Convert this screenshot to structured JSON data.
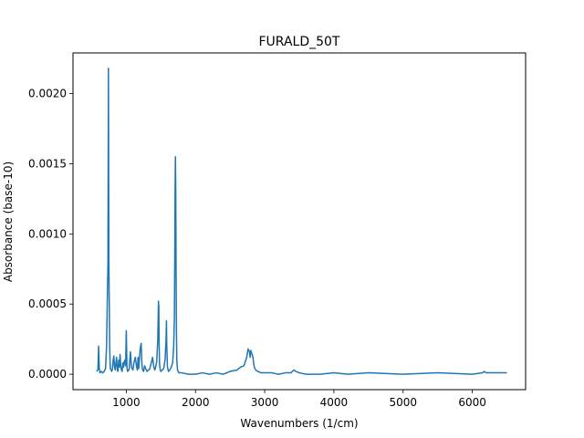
{
  "chart_data": {
    "type": "line",
    "title": "FURALD_50T",
    "xlabel": "Wavenumbers (1/cm)",
    "ylabel": "Absorbance (base-10)",
    "xlim": [
      230,
      6770
    ],
    "ylim": [
      -0.00011,
      0.00229
    ],
    "xticks": [
      1000,
      2000,
      3000,
      4000,
      5000,
      6000
    ],
    "xtick_labels": [
      "1000",
      "2000",
      "3000",
      "4000",
      "5000",
      "6000"
    ],
    "yticks": [
      0.0,
      0.0005,
      0.001,
      0.0015,
      0.002
    ],
    "ytick_labels": [
      "0.0000",
      "0.0005",
      "0.0010",
      "0.0015",
      "0.0020"
    ],
    "grid": false,
    "line_color": "#1f77b4",
    "series": [
      {
        "x": [
          570,
          590,
          600,
          610,
          620,
          640,
          660,
          680,
          700,
          715,
          725,
          735,
          742,
          748,
          752,
          756,
          760,
          765,
          770,
          780,
          790,
          800,
          810,
          820,
          830,
          840,
          850,
          860,
          870,
          880,
          890,
          900,
          910,
          920,
          930,
          940,
          950,
          960,
          970,
          980,
          990,
          1000,
          1010,
          1020,
          1030,
          1040,
          1060,
          1075,
          1085,
          1095,
          1110,
          1130,
          1150,
          1160,
          1170,
          1180,
          1200,
          1215,
          1225,
          1235,
          1250,
          1265,
          1280,
          1300,
          1320,
          1340,
          1360,
          1380,
          1395,
          1410,
          1420,
          1440,
          1455,
          1465,
          1470,
          1475,
          1480,
          1490,
          1500,
          1520,
          1540,
          1560,
          1575,
          1580,
          1585,
          1595,
          1610,
          1630,
          1650,
          1670,
          1685,
          1695,
          1700,
          1705,
          1710,
          1715,
          1720,
          1725,
          1730,
          1740,
          1760,
          1800,
          1900,
          2000,
          2100,
          2200,
          2300,
          2400,
          2500,
          2600,
          2650,
          2700,
          2740,
          2760,
          2780,
          2790,
          2800,
          2810,
          2820,
          2830,
          2840,
          2850,
          2870,
          2900,
          2950,
          3000,
          3100,
          3200,
          3300,
          3380,
          3400,
          3420,
          3450,
          3500,
          3600,
          3800,
          4000,
          4200,
          4500,
          5000,
          5500,
          6000,
          6150,
          6170,
          6200,
          6500
        ],
        "y": [
          2e-05,
          3e-05,
          0.0002,
          4e-05,
          1e-05,
          2e-05,
          1e-05,
          2e-05,
          4e-05,
          0.0002,
          0.0005,
          0.0008,
          0.00218,
          0.00085,
          0.0006,
          0.0004,
          0.0002,
          0.0001,
          4e-05,
          3e-05,
          2e-05,
          4e-05,
          0.0001,
          0.00013,
          5e-05,
          3e-05,
          8e-05,
          0.00012,
          3e-05,
          2e-05,
          0.0001,
          5e-05,
          0.00014,
          6e-05,
          3e-05,
          2e-05,
          8e-05,
          5e-05,
          9e-05,
          0.0001,
          6e-05,
          0.00031,
          4e-05,
          2e-05,
          3e-05,
          3e-05,
          0.00016,
          5e-05,
          4e-05,
          3e-05,
          8e-05,
          0.00012,
          5e-05,
          3e-05,
          0.00012,
          4e-05,
          0.00018,
          0.00022,
          8e-05,
          3e-05,
          2e-05,
          6e-05,
          4e-05,
          2e-05,
          3e-05,
          4e-05,
          8e-05,
          0.00012,
          6e-05,
          3e-05,
          4e-05,
          9e-05,
          0.00025,
          0.00052,
          0.00048,
          0.0002,
          8e-05,
          3e-05,
          2e-05,
          3e-05,
          4e-05,
          0.0001,
          0.00025,
          0.00038,
          0.0002,
          5e-05,
          2e-05,
          3e-05,
          5e-05,
          8e-05,
          0.0002,
          0.0004,
          0.0008,
          0.0013,
          0.00155,
          0.0013,
          0.0007,
          0.0003,
          0.0001,
          3e-05,
          1e-05,
          1e-05,
          0.0,
          0.0,
          1e-05,
          0.0,
          1e-05,
          0.0,
          2e-05,
          3e-05,
          5e-05,
          6e-05,
          0.00012,
          0.00018,
          0.00016,
          0.00012,
          0.00017,
          0.00015,
          0.00014,
          0.00012,
          8e-05,
          5e-05,
          3e-05,
          2e-05,
          1e-05,
          1e-05,
          1e-05,
          0.0,
          1e-05,
          1e-05,
          2e-05,
          3e-05,
          2e-05,
          1e-05,
          0.0,
          0.0,
          1e-05,
          0.0,
          1e-05,
          0.0,
          1e-05,
          0.0,
          1e-05,
          2e-05,
          1e-05,
          1e-05
        ]
      }
    ]
  }
}
